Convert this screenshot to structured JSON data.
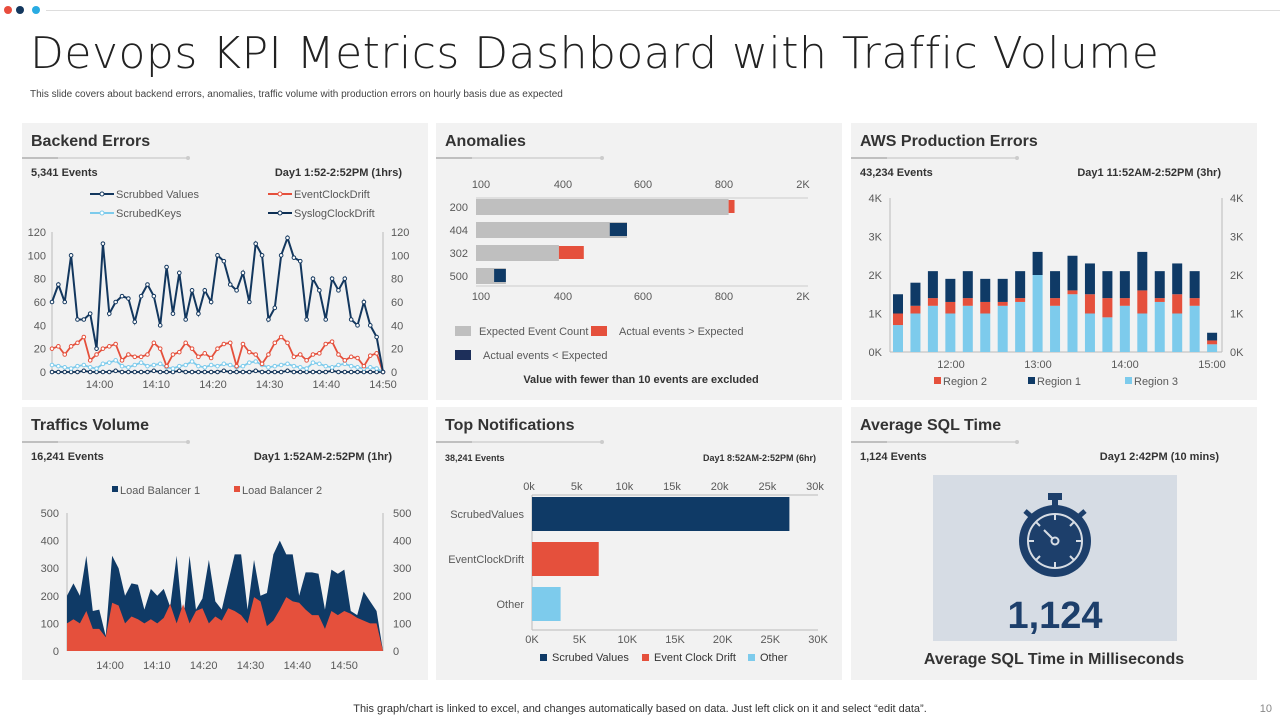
{
  "header": {
    "title": "Devops KPI Metrics Dashboard with Traffic Volume",
    "subtitle": "This slide covers about backend errors, anomalies, traffic volume with production errors on hourly basis due as expected",
    "dot_colors": [
      "#e84c3d",
      "#13375e",
      "#29abe2"
    ]
  },
  "colors": {
    "navy": "#0f3a66",
    "red": "#e5503c",
    "light_blue": "#7dcbec",
    "grey": "#bfbfbf"
  },
  "backend": {
    "title": "Backend Errors",
    "events": "5,341 Events",
    "range": "Day1  1:52-2:52PM (1hrs)"
  },
  "anomalies": {
    "title": "Anomalies",
    "note": "Value with fewer than 10 events are excluded"
  },
  "aws": {
    "title": "AWS Production Errors",
    "events": "43,234 Events",
    "range": "Day1  11:52AM-2:52PM (3hr)"
  },
  "traffic": {
    "title": "Traffics Volume",
    "events": "16,241 Events",
    "range": "Day1   1:52AM-2:52PM (1hr)"
  },
  "notifications": {
    "title": "Top Notifications",
    "events": "38,241 Events",
    "range": "Day1  8:52AM-2:52PM   (6hr)"
  },
  "sql": {
    "title": "Average SQL Time",
    "events": "1,124 Events",
    "range": "Day1   2:42PM (10 mins)",
    "value": "1,124",
    "caption": "Average SQL Time in Milliseconds"
  },
  "footer": {
    "text": "This graph/chart is linked to excel,  and changes automatically based on data. Just left click on it and select “edit data”.",
    "page": "10"
  },
  "chart_data": [
    {
      "type": "line",
      "id": "backend",
      "ylim": [
        0,
        120
      ],
      "yticks": [
        "0",
        "20",
        "40",
        "60",
        "80",
        "100",
        "120"
      ],
      "xticks": [
        "14:00",
        "14:10",
        "14:20",
        "14:30",
        "14:40",
        "14:50"
      ],
      "series": [
        {
          "name": "Scrubbed Values",
          "color": "#13375e",
          "values": [
            60,
            75,
            60,
            100,
            45,
            45,
            50,
            20,
            110,
            50,
            60,
            65,
            63,
            43,
            65,
            75,
            65,
            40,
            90,
            50,
            85,
            45,
            70,
            50,
            70,
            60,
            100,
            95,
            75,
            70,
            85,
            60,
            110,
            100,
            45,
            55,
            100,
            115,
            98,
            95,
            45,
            80,
            70,
            45,
            80,
            70,
            80,
            45,
            40,
            60,
            40,
            30,
            0
          ]
        },
        {
          "name": "EventClockDrift",
          "color": "#e5503c",
          "values": [
            20,
            22,
            15,
            22,
            25,
            30,
            10,
            15,
            20,
            22,
            24,
            10,
            15,
            13,
            13,
            15,
            25,
            20,
            5,
            15,
            17,
            25,
            20,
            13,
            16,
            12,
            20,
            24,
            25,
            5,
            24,
            17,
            15,
            7,
            15,
            25,
            30,
            25,
            13,
            15,
            10,
            15,
            16,
            24,
            26,
            15,
            10,
            13,
            12,
            5,
            14,
            16,
            0
          ]
        },
        {
          "name": "ScrubedKeys",
          "color": "#7dcbec",
          "values": [
            6,
            5,
            4,
            3,
            5,
            6,
            4,
            3,
            7,
            8,
            10,
            5,
            4,
            6,
            8,
            5,
            6,
            7,
            4,
            3,
            5,
            6,
            9,
            5,
            4,
            6,
            5,
            7,
            6,
            4,
            5,
            8,
            9,
            6,
            4,
            5,
            6,
            7,
            5,
            4,
            3,
            8,
            7,
            5,
            4,
            6,
            7,
            5,
            4,
            3,
            4,
            3,
            0
          ]
        },
        {
          "name": "SyslogClockDrift",
          "color": "#0d2f55",
          "values": [
            0,
            0,
            0,
            0,
            0,
            1,
            0,
            0,
            0,
            0,
            1,
            0,
            0,
            0,
            0,
            0,
            1,
            0,
            0,
            0,
            1,
            0,
            0,
            0,
            0,
            0,
            0,
            1,
            0,
            0,
            0,
            0,
            1,
            0,
            0,
            0,
            0,
            1,
            0,
            0,
            0,
            0,
            0,
            0,
            1,
            0,
            0,
            0,
            0,
            0,
            0,
            0,
            0
          ]
        }
      ]
    },
    {
      "type": "bar",
      "id": "anomalies",
      "orientation": "horizontal",
      "xticks": [
        "100",
        "400",
        "600",
        "800",
        "2K"
      ],
      "categories": [
        "200",
        "404",
        "302",
        "500"
      ],
      "series": [
        {
          "name": "Expected Event Count",
          "values": [
            870,
            560,
            385,
            191
          ]
        },
        {
          "name": "Actual events",
          "values": [
            960,
            517,
            452,
            148
          ]
        }
      ],
      "legend": [
        "Expected Event Count",
        "Actual events > Expected",
        "Actual events < Expected"
      ]
    },
    {
      "type": "bar",
      "id": "aws",
      "stacked": true,
      "ylim": [
        0,
        4000
      ],
      "yticks": [
        "0K",
        "1K",
        "2K",
        "3K",
        "4K"
      ],
      "xticks": [
        "12:00",
        "13:00",
        "14:00",
        "15:00"
      ],
      "series": [
        {
          "name": "Region 3",
          "values": [
            700,
            1000,
            1200,
            1000,
            1200,
            1000,
            1200,
            1300,
            2000,
            1200,
            1500,
            1000,
            900,
            1200,
            1000,
            1300,
            1000,
            1200,
            200
          ]
        },
        {
          "name": "Region 2",
          "values": [
            300,
            200,
            200,
            300,
            200,
            300,
            100,
            100,
            0,
            200,
            100,
            500,
            500,
            200,
            600,
            100,
            500,
            200,
            100
          ]
        },
        {
          "name": "Region 1",
          "values": [
            500,
            600,
            700,
            600,
            700,
            600,
            600,
            700,
            600,
            700,
            900,
            800,
            700,
            700,
            1000,
            700,
            800,
            700,
            200
          ]
        }
      ],
      "legend": [
        "Region 2",
        "Region 1",
        "Region 3"
      ]
    },
    {
      "type": "area",
      "id": "traffic",
      "ylim": [
        0,
        500
      ],
      "yticks": [
        "0",
        "100",
        "200",
        "300",
        "400",
        "500"
      ],
      "xticks": [
        "14:00",
        "14:10",
        "14:20",
        "14:30",
        "14:40",
        "14:50"
      ],
      "series": [
        {
          "name": "Load Balancer 1",
          "values": [
            200,
            245,
            200,
            345,
            145,
            150,
            55,
            345,
            300,
            200,
            245,
            240,
            150,
            225,
            200,
            225,
            160,
            345,
            100,
            345,
            150,
            190,
            330,
            180,
            150,
            250,
            350,
            350,
            150,
            330,
            200,
            210,
            350,
            400,
            350,
            350,
            200,
            285,
            285,
            280,
            150,
            295,
            280,
            295,
            145,
            130,
            215,
            180,
            145,
            0
          ]
        },
        {
          "name": "Load Balancer 2",
          "values": [
            100,
            115,
            100,
            145,
            80,
            80,
            50,
            175,
            165,
            100,
            125,
            115,
            100,
            115,
            100,
            120,
            170,
            100,
            170,
            100,
            145,
            155,
            100,
            125,
            110,
            155,
            145,
            130,
            100,
            195,
            180,
            90,
            110,
            150,
            195,
            180,
            175,
            150,
            130,
            130,
            80,
            145,
            130,
            145,
            135,
            120,
            110,
            100,
            100,
            0
          ]
        }
      ]
    },
    {
      "type": "bar",
      "id": "notifications",
      "orientation": "horizontal",
      "xlim": [
        0,
        30000
      ],
      "xticks_top": [
        "0k",
        "5k",
        "10k",
        "15k",
        "20k",
        "25k",
        "30k"
      ],
      "xticks_bottom": [
        "0K",
        "5K",
        "10K",
        "15K",
        "20K",
        "25K",
        "30K"
      ],
      "categories": [
        "ScrubedValues",
        "EventClockDrift",
        "Other"
      ],
      "values": [
        27000,
        7000,
        3000
      ],
      "legend": [
        "Scrubed Values",
        "Event Clock Drift",
        "Other"
      ]
    }
  ]
}
